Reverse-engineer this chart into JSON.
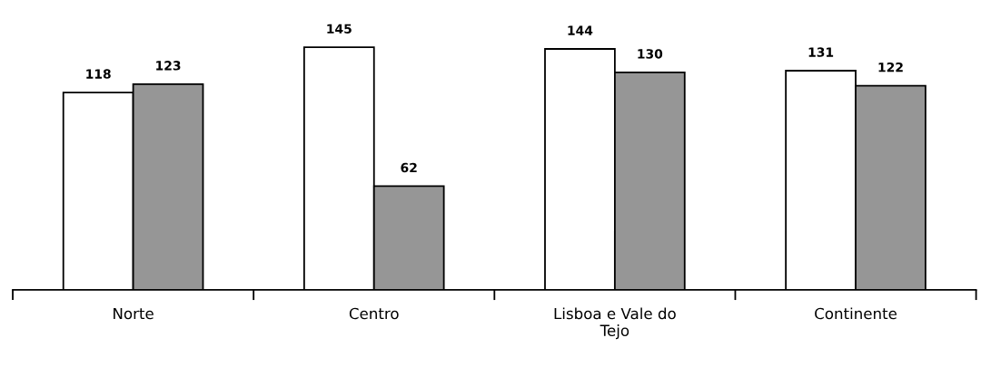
{
  "chart_data": {
    "type": "bar",
    "categories": [
      "Norte",
      "Centro",
      "Lisboa e Vale do\nTejo",
      "Continente"
    ],
    "series": [
      {
        "color": "#ffffff",
        "values": [
          118,
          145,
          144,
          131
        ]
      },
      {
        "color": "#969696",
        "values": [
          123,
          62,
          130,
          122
        ]
      }
    ],
    "data_labels": true,
    "grid": false,
    "legend": false
  }
}
